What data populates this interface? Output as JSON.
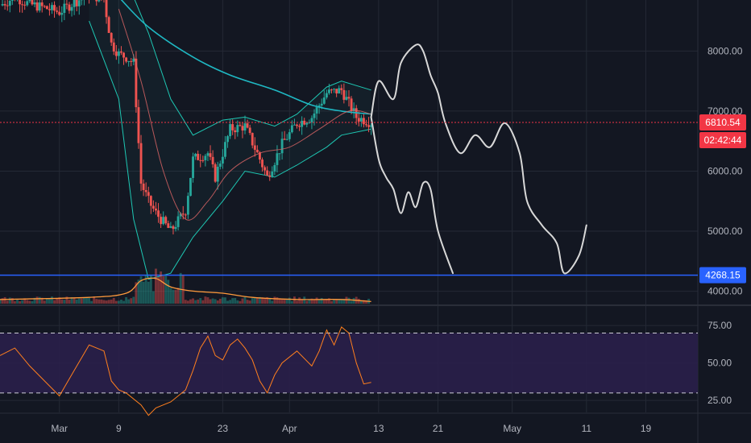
{
  "colors": {
    "background": "#131722",
    "grid": "#242935",
    "up": "#26a69a",
    "down": "#ef5350",
    "bollinger": "#1ec7b3",
    "ma200": "#1fb8c3",
    "ma_short": "#e06666",
    "drawing": "#d8d8d8",
    "price_line": "#f23645",
    "support_line": "#2962ff",
    "rsi_line": "#ff7f1e",
    "rsi_band": "#2a1f4a",
    "volume_ma": "#ff9a3c",
    "axis_text": "#b2b5be"
  },
  "chart_data": [
    {
      "type": "candlestick",
      "panel": "price",
      "x_range": [
        "2020-02-22",
        "2020-05-26"
      ],
      "y_range": [
        3780,
        8850
      ],
      "yaxis_ticks": [
        "8000.00",
        "7000.00",
        "6000.00",
        "5000.00",
        "4000.00"
      ],
      "xaxis_ticks": [
        "Mar",
        "9",
        "23",
        "Apr",
        "13",
        "21",
        "May",
        "11",
        "19"
      ],
      "grid": true,
      "price_tag": {
        "value": "6810.54",
        "countdown": "02:42:44"
      },
      "support_tag": {
        "value": "4268.15"
      },
      "series": [
        {
          "kind": "candles",
          "daily_close": [
            [
              "2020-02-22",
              8800
            ],
            [
              "2020-02-25",
              8900
            ],
            [
              "2020-02-26",
              8750
            ],
            [
              "2020-02-27",
              8720
            ],
            [
              "2020-02-28",
              8700
            ],
            [
              "2020-03-01",
              8650
            ],
            [
              "2020-03-03",
              8800
            ],
            [
              "2020-03-05",
              8950
            ],
            [
              "2020-03-07",
              8800
            ],
            [
              "2020-03-08",
              8100
            ],
            [
              "2020-03-09",
              7950
            ],
            [
              "2020-03-10",
              7900
            ],
            [
              "2020-03-11",
              7800
            ],
            [
              "2020-03-12",
              5800
            ],
            [
              "2020-03-13",
              5600
            ],
            [
              "2020-03-14",
              5300
            ],
            [
              "2020-03-15",
              5400
            ],
            [
              "2020-03-16",
              5000
            ],
            [
              "2020-03-17",
              5350
            ],
            [
              "2020-03-18",
              5400
            ],
            [
              "2020-03-19",
              6200
            ],
            [
              "2020-03-20",
              6250
            ],
            [
              "2020-03-21",
              6300
            ],
            [
              "2020-03-22",
              5900
            ],
            [
              "2020-03-23",
              6400
            ],
            [
              "2020-03-24",
              6700
            ],
            [
              "2020-03-25",
              6650
            ],
            [
              "2020-03-26",
              6750
            ],
            [
              "2020-03-27",
              6450
            ],
            [
              "2020-03-28",
              6200
            ],
            [
              "2020-03-29",
              5900
            ],
            [
              "2020-03-30",
              6400
            ],
            [
              "2020-03-31",
              6450
            ],
            [
              "2020-04-01",
              6650
            ],
            [
              "2020-04-02",
              6800
            ],
            [
              "2020-04-03",
              6750
            ],
            [
              "2020-04-04",
              6900
            ],
            [
              "2020-04-05",
              6800
            ],
            [
              "2020-04-06",
              7300
            ],
            [
              "2020-04-07",
              7250
            ],
            [
              "2020-04-08",
              7350
            ],
            [
              "2020-04-09",
              7300
            ],
            [
              "2020-04-10",
              6900
            ],
            [
              "2020-04-11",
              6850
            ],
            [
              "2020-04-12",
              6810
            ]
          ],
          "close_line": [
            [
              "2020-02-22",
              8760
            ],
            [
              "2020-02-24",
              8900
            ],
            [
              "2020-02-26",
              8780
            ],
            [
              "2020-02-28",
              8720
            ],
            [
              "2020-03-01",
              8650
            ],
            [
              "2020-03-03",
              8810
            ],
            [
              "2020-03-05",
              8950
            ],
            [
              "2020-03-07",
              8860
            ],
            [
              "2020-03-08",
              8120
            ],
            [
              "2020-03-09",
              7950
            ],
            [
              "2020-03-10",
              7900
            ],
            [
              "2020-03-11",
              7800
            ],
            [
              "2020-03-12",
              5800
            ],
            [
              "2020-03-13",
              5500
            ],
            [
              "2020-03-14",
              5300
            ],
            [
              "2020-03-16",
              5000
            ],
            [
              "2020-03-18",
              5350
            ],
            [
              "2020-03-19",
              6200
            ],
            [
              "2020-03-21",
              6300
            ],
            [
              "2020-03-22",
              5900
            ],
            [
              "2020-03-24",
              6700
            ],
            [
              "2020-03-26",
              6750
            ],
            [
              "2020-03-28",
              6200
            ],
            [
              "2020-03-29",
              5900
            ],
            [
              "2020-03-31",
              6450
            ],
            [
              "2020-04-02",
              6800
            ],
            [
              "2020-04-04",
              6900
            ],
            [
              "2020-04-06",
              7300
            ],
            [
              "2020-04-08",
              7350
            ],
            [
              "2020-04-10",
              6900
            ],
            [
              "2020-04-12",
              6810
            ]
          ]
        },
        {
          "kind": "bollinger_upper",
          "points": [
            [
              "2020-03-05",
              9100
            ],
            [
              "2020-03-09",
              9150
            ],
            [
              "2020-03-11",
              8900
            ],
            [
              "2020-03-13",
              8300
            ],
            [
              "2020-03-16",
              7200
            ],
            [
              "2020-03-19",
              6600
            ],
            [
              "2020-03-23",
              6850
            ],
            [
              "2020-03-26",
              6900
            ],
            [
              "2020-03-30",
              6750
            ],
            [
              "2020-04-02",
              6950
            ],
            [
              "2020-04-06",
              7400
            ],
            [
              "2020-04-08",
              7500
            ],
            [
              "2020-04-12",
              7350
            ]
          ]
        },
        {
          "kind": "bollinger_lower",
          "points": [
            [
              "2020-03-05",
              8500
            ],
            [
              "2020-03-09",
              7200
            ],
            [
              "2020-03-11",
              5200
            ],
            [
              "2020-03-13",
              4200
            ],
            [
              "2020-03-16",
              4300
            ],
            [
              "2020-03-19",
              4900
            ],
            [
              "2020-03-23",
              5500
            ],
            [
              "2020-03-26",
              6000
            ],
            [
              "2020-03-30",
              5900
            ],
            [
              "2020-04-02",
              6100
            ],
            [
              "2020-04-06",
              6400
            ],
            [
              "2020-04-08",
              6600
            ],
            [
              "2020-04-12",
              6700
            ]
          ]
        },
        {
          "kind": "ma200",
          "points": [
            [
              "2020-03-09",
              8900
            ],
            [
              "2020-03-13",
              8400
            ],
            [
              "2020-03-19",
              7900
            ],
            [
              "2020-03-24",
              7600
            ],
            [
              "2020-03-30",
              7350
            ],
            [
              "2020-04-04",
              7100
            ],
            [
              "2020-04-08",
              7000
            ],
            [
              "2020-04-12",
              6950
            ]
          ]
        },
        {
          "kind": "ma_short",
          "points": [
            [
              "2020-03-09",
              8700
            ],
            [
              "2020-03-12",
              7500
            ],
            [
              "2020-03-15",
              6000
            ],
            [
              "2020-03-18",
              5200
            ],
            [
              "2020-03-21",
              5500
            ],
            [
              "2020-03-24",
              6000
            ],
            [
              "2020-03-28",
              6300
            ],
            [
              "2020-04-01",
              6400
            ],
            [
              "2020-04-05",
              6700
            ],
            [
              "2020-04-09",
              7000
            ],
            [
              "2020-04-12",
              6950
            ]
          ]
        },
        {
          "kind": "projection_upper",
          "points": [
            [
              "2020-04-12",
              6900
            ],
            [
              "2020-04-13",
              7500
            ],
            [
              "2020-04-15",
              7200
            ],
            [
              "2020-04-16",
              7800
            ],
            [
              "2020-04-18",
              8100
            ],
            [
              "2020-04-19",
              8000
            ],
            [
              "2020-04-20",
              7600
            ],
            [
              "2020-04-21",
              7300
            ],
            [
              "2020-04-22",
              6800
            ],
            [
              "2020-04-24",
              6300
            ],
            [
              "2020-04-26",
              6600
            ],
            [
              "2020-04-28",
              6400
            ],
            [
              "2020-04-30",
              6800
            ],
            [
              "2020-05-02",
              6300
            ],
            [
              "2020-05-03",
              5500
            ],
            [
              "2020-05-05",
              5100
            ],
            [
              "2020-05-07",
              4800
            ],
            [
              "2020-05-08",
              4300
            ],
            [
              "2020-05-10",
              4600
            ],
            [
              "2020-05-11",
              5100
            ]
          ]
        },
        {
          "kind": "projection_lower",
          "points": [
            [
              "2020-04-12",
              6900
            ],
            [
              "2020-04-13",
              6200
            ],
            [
              "2020-04-14",
              5900
            ],
            [
              "2020-04-15",
              5700
            ],
            [
              "2020-04-16",
              5300
            ],
            [
              "2020-04-17",
              5650
            ],
            [
              "2020-04-18",
              5400
            ],
            [
              "2020-04-19",
              5800
            ],
            [
              "2020-04-20",
              5700
            ],
            [
              "2020-04-21",
              5000
            ],
            [
              "2020-04-23",
              4300
            ]
          ]
        }
      ],
      "price_line": 6810.54,
      "support_line": 4268.15
    },
    {
      "type": "bar",
      "panel": "volume",
      "x_range": [
        "2020-02-22",
        "2020-05-26"
      ],
      "volume_ma": [
        [
          "2020-02-22",
          2
        ],
        [
          "2020-03-05",
          3
        ],
        [
          "2020-03-10",
          5
        ],
        [
          "2020-03-12",
          11
        ],
        [
          "2020-03-14",
          12
        ],
        [
          "2020-03-16",
          8
        ],
        [
          "2020-03-19",
          6
        ],
        [
          "2020-03-23",
          5
        ],
        [
          "2020-03-27",
          3
        ],
        [
          "2020-04-02",
          2
        ],
        [
          "2020-04-08",
          2
        ],
        [
          "2020-04-12",
          1
        ]
      ]
    },
    {
      "type": "line",
      "panel": "rsi",
      "x_range": [
        "2020-02-22",
        "2020-05-26"
      ],
      "y_range": [
        17,
        88
      ],
      "yaxis_ticks": [
        "75.00",
        "50.00",
        "25.00"
      ],
      "band": [
        30,
        70
      ],
      "series": [
        {
          "points": [
            [
              "2020-02-22",
              55
            ],
            [
              "2020-02-24",
              60
            ],
            [
              "2020-02-26",
              48
            ],
            [
              "2020-02-28",
              38
            ],
            [
              "2020-03-01",
              28
            ],
            [
              "2020-03-03",
              45
            ],
            [
              "2020-03-05",
              62
            ],
            [
              "2020-03-07",
              58
            ],
            [
              "2020-03-08",
              38
            ],
            [
              "2020-03-09",
              32
            ],
            [
              "2020-03-10",
              30
            ],
            [
              "2020-03-12",
              22
            ],
            [
              "2020-03-13",
              15
            ],
            [
              "2020-03-14",
              20
            ],
            [
              "2020-03-16",
              24
            ],
            [
              "2020-03-18",
              32
            ],
            [
              "2020-03-19",
              45
            ],
            [
              "2020-03-20",
              60
            ],
            [
              "2020-03-21",
              68
            ],
            [
              "2020-03-22",
              55
            ],
            [
              "2020-03-23",
              52
            ],
            [
              "2020-03-24",
              62
            ],
            [
              "2020-03-25",
              66
            ],
            [
              "2020-03-26",
              60
            ],
            [
              "2020-03-27",
              52
            ],
            [
              "2020-03-28",
              38
            ],
            [
              "2020-03-29",
              30
            ],
            [
              "2020-03-30",
              42
            ],
            [
              "2020-03-31",
              50
            ],
            [
              "2020-04-02",
              58
            ],
            [
              "2020-04-04",
              48
            ],
            [
              "2020-04-05",
              58
            ],
            [
              "2020-04-06",
              72
            ],
            [
              "2020-04-07",
              62
            ],
            [
              "2020-04-08",
              74
            ],
            [
              "2020-04-09",
              70
            ],
            [
              "2020-04-10",
              50
            ],
            [
              "2020-04-11",
              36
            ],
            [
              "2020-04-12",
              37
            ]
          ]
        }
      ]
    }
  ]
}
